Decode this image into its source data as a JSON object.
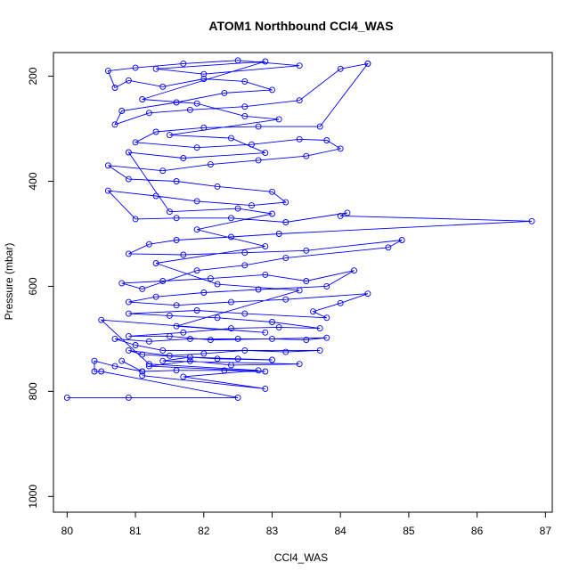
{
  "chart_data": {
    "type": "scatter",
    "title": "ATOM1 Northbound CCl4_WAS",
    "xlabel": "CCl4_WAS",
    "ylabel": "Pressure (mbar)",
    "xlim": [
      79.8,
      87.1
    ],
    "ylim": [
      1030,
      155
    ],
    "y_reversed": true,
    "x_ticks": [
      80,
      81,
      82,
      83,
      84,
      85,
      86,
      87
    ],
    "y_ticks": [
      200,
      400,
      600,
      800,
      1000
    ],
    "series_color": "#0000ff",
    "marker": "open-circle",
    "connected": true,
    "points": [
      [
        80.0,
        812
      ],
      [
        80.9,
        812
      ],
      [
        82.5,
        812
      ],
      [
        80.5,
        762
      ],
      [
        80.4,
        762
      ],
      [
        80.4,
        742
      ],
      [
        80.7,
        752
      ],
      [
        81.1,
        762
      ],
      [
        80.8,
        742
      ],
      [
        81.1,
        762
      ],
      [
        81.6,
        760
      ],
      [
        82.3,
        760
      ],
      [
        82.9,
        762
      ],
      [
        81.2,
        752
      ],
      [
        81.8,
        742
      ],
      [
        82.4,
        750
      ],
      [
        83.4,
        748
      ],
      [
        81.4,
        742
      ],
      [
        81.8,
        735
      ],
      [
        82.5,
        738
      ],
      [
        83.0,
        740
      ],
      [
        82.2,
        738
      ],
      [
        81.1,
        730
      ],
      [
        80.9,
        722
      ],
      [
        81.5,
        732
      ],
      [
        82.0,
        728
      ],
      [
        82.6,
        722
      ],
      [
        83.2,
        725
      ],
      [
        83.7,
        722
      ],
      [
        81.4,
        722
      ],
      [
        81.0,
        712
      ],
      [
        80.7,
        700
      ],
      [
        81.2,
        705
      ],
      [
        81.8,
        700
      ],
      [
        82.5,
        700
      ],
      [
        83.0,
        700
      ],
      [
        83.5,
        702
      ],
      [
        83.8,
        698
      ],
      [
        82.1,
        702
      ],
      [
        81.5,
        695
      ],
      [
        80.9,
        695
      ],
      [
        81.7,
        688
      ],
      [
        82.4,
        680
      ],
      [
        83.1,
        678
      ],
      [
        83.7,
        680
      ],
      [
        83.0,
        668
      ],
      [
        82.2,
        660
      ],
      [
        81.5,
        656
      ],
      [
        80.9,
        652
      ],
      [
        81.9,
        646
      ],
      [
        82.6,
        652
      ],
      [
        83.8,
        660
      ],
      [
        83.6,
        648
      ],
      [
        84.0,
        632
      ],
      [
        84.4,
        614
      ],
      [
        83.2,
        625
      ],
      [
        82.4,
        630
      ],
      [
        81.6,
        636
      ],
      [
        80.9,
        630
      ],
      [
        81.3,
        620
      ],
      [
        82.0,
        612
      ],
      [
        82.8,
        606
      ],
      [
        83.8,
        600
      ],
      [
        84.2,
        570
      ],
      [
        83.5,
        590
      ],
      [
        82.9,
        578
      ],
      [
        82.1,
        585
      ],
      [
        81.4,
        590
      ],
      [
        80.8,
        594
      ],
      [
        81.1,
        605
      ],
      [
        81.9,
        570
      ],
      [
        82.6,
        560
      ],
      [
        83.2,
        546
      ],
      [
        84.7,
        526
      ],
      [
        84.9,
        512
      ],
      [
        83.5,
        532
      ],
      [
        82.6,
        536
      ],
      [
        81.7,
        540
      ],
      [
        80.9,
        538
      ],
      [
        81.2,
        520
      ],
      [
        81.6,
        512
      ],
      [
        82.4,
        506
      ],
      [
        83.1,
        500
      ],
      [
        86.8,
        476
      ],
      [
        84.0,
        466
      ],
      [
        84.1,
        460
      ],
      [
        83.2,
        478
      ],
      [
        82.4,
        470
      ],
      [
        81.6,
        470
      ],
      [
        81.0,
        472
      ],
      [
        80.6,
        418
      ],
      [
        81.3,
        428
      ],
      [
        81.9,
        438
      ],
      [
        82.7,
        446
      ],
      [
        83.2,
        440
      ],
      [
        83.0,
        420
      ],
      [
        82.2,
        410
      ],
      [
        81.6,
        400
      ],
      [
        80.9,
        396
      ],
      [
        80.6,
        370
      ],
      [
        81.4,
        380
      ],
      [
        82.1,
        368
      ],
      [
        82.8,
        360
      ],
      [
        83.5,
        352
      ],
      [
        84.0,
        338
      ],
      [
        83.8,
        322
      ],
      [
        83.4,
        320
      ],
      [
        82.7,
        330
      ],
      [
        81.9,
        336
      ],
      [
        81.0,
        326
      ],
      [
        81.3,
        306
      ],
      [
        82.0,
        298
      ],
      [
        82.8,
        296
      ],
      [
        83.7,
        296
      ],
      [
        84.4,
        176
      ],
      [
        84.4,
        176
      ],
      [
        84.0,
        186
      ],
      [
        83.4,
        246
      ],
      [
        82.6,
        258
      ],
      [
        81.8,
        264
      ],
      [
        81.2,
        270
      ],
      [
        80.7,
        292
      ],
      [
        80.8,
        266
      ],
      [
        81.6,
        250
      ],
      [
        82.3,
        232
      ],
      [
        83.0,
        226
      ],
      [
        82.6,
        210
      ],
      [
        82.0,
        205
      ],
      [
        81.4,
        220
      ],
      [
        80.9,
        208
      ],
      [
        80.7,
        222
      ],
      [
        80.6,
        190
      ],
      [
        81.0,
        184
      ],
      [
        81.7,
        176
      ],
      [
        82.5,
        170
      ],
      [
        83.4,
        180
      ],
      [
        82.0,
        196
      ],
      [
        81.3,
        186
      ],
      [
        82.9,
        172
      ],
      [
        81.1,
        244
      ],
      [
        81.9,
        252
      ],
      [
        82.6,
        276
      ],
      [
        83.1,
        282
      ],
      [
        81.5,
        312
      ],
      [
        82.4,
        318
      ],
      [
        82.9,
        346
      ],
      [
        81.7,
        356
      ],
      [
        80.9,
        345
      ],
      [
        81.5,
        458
      ],
      [
        82.5,
        452
      ],
      [
        83.0,
        462
      ],
      [
        81.9,
        492
      ],
      [
        82.9,
        524
      ],
      [
        81.3,
        556
      ],
      [
        82.2,
        596
      ],
      [
        83.4,
        608
      ],
      [
        81.6,
        676
      ],
      [
        82.9,
        688
      ],
      [
        80.5,
        664
      ],
      [
        81.2,
        748
      ],
      [
        82.8,
        760
      ],
      [
        81.7,
        772
      ],
      [
        82.9,
        795
      ],
      [
        81.1,
        770
      ]
    ]
  }
}
